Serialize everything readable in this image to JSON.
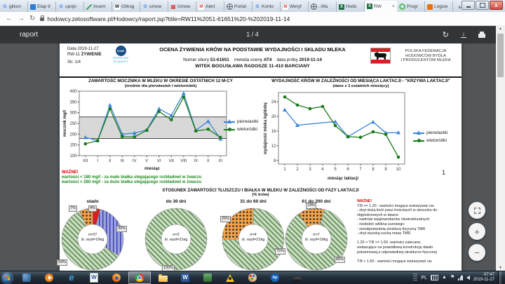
{
  "browser": {
    "tabs": [
      {
        "label": "glikon",
        "icon": "google"
      },
      {
        "label": "Etap 9",
        "icon": "blue-grid"
      },
      {
        "label": "upojn",
        "icon": "google"
      },
      {
        "label": "Insem",
        "icon": "green-pen"
      },
      {
        "label": "Glikog",
        "icon": "wikipedia"
      },
      {
        "label": "umow",
        "icon": "google"
      },
      {
        "label": "Umow",
        "icon": "red-grid"
      },
      {
        "label": "Alert",
        "icon": "gmail"
      },
      {
        "label": "Portal",
        "icon": "globe"
      },
      {
        "label": "Konto",
        "icon": "google"
      },
      {
        "label": "Weryf",
        "icon": "gmail"
      },
      {
        "label": "..Wa",
        "icon": "globe"
      },
      {
        "label": "Hodo",
        "icon": "excel"
      },
      {
        "label": "RW",
        "icon": "excel",
        "active": true
      },
      {
        "label": "Progr",
        "icon": "green-ring"
      },
      {
        "label": "Logow",
        "icon": "orange-app"
      }
    ],
    "new_tab_label": "+",
    "close_tab_glyph": "×",
    "url": "hodowcy.zetosoftware.pl/Hodowcy/raport.jsp?title=RW11%2051-61651%20-%202019-11-14"
  },
  "pdf": {
    "title": "raport",
    "page_indicator": "1 / 4"
  },
  "report": {
    "meta": {
      "line1": "Data 2019-11-27",
      "code": "RW-11",
      "code_name": "ŻYWIENIE",
      "page": "Str. 1/4"
    },
    "icar": {
      "name": "ICAR",
      "cert_line1": "CERTIFICATE",
      "cert_line2": "OF QUALITY"
    },
    "title": "OCENA ŻYWIENIA KRÓW NA PODSTAWIE WYDAJNOŚCI I SKŁADU MLEKA",
    "info": {
      "numer_label": "Numer obory",
      "numer": "51-61651",
      "metoda_label": "metoda oceny",
      "metoda": "AT4",
      "proba_label": "data próby",
      "proba": "2019-11-14"
    },
    "farm": "WITEK  BOGUSŁAWA RADOSZE 11-410 BARCIANY",
    "federation": [
      "POLSKA FEDERACJA",
      "HODOWCÓW BYDŁA",
      "I PRODUCENTÓW MLEKA"
    ],
    "urea_warning": {
      "heading": "WAŻNE!",
      "lines": [
        "wartości < 180 mg/l - za mało białka ulegającego rozkładowi w żwaczu",
        "wartości > 280 mg/l - za dużo białka ulegającego rozkładowi w żwaczu"
      ]
    },
    "page_number": "1",
    "tb_warning": {
      "heading": "WAŻNE!",
      "lines": [
        "T:B <= 1.20 - wartości mogące wskazywać na:",
        "- zbyt dużą ilość pasz treściwych w stosunku do",
        "objętościowych w dawce",
        "- nadmiar węglowodanów niestrukturalnych",
        "- niedobór włókna surowego",
        "- nieodpowiednią strukturę fizyczną TMR",
        "- zbyt wysoką suchą masę TMR",
        "",
        "1.20 > T:B <= 1.50 -wartości zalecane,",
        "wskazujące na prawidłową konstrukcję dawki",
        "pokarmowej,o odpowiedniej strukturze fizycznej",
        "",
        "T:B > 1.50 - wartości mogące wskazywać na:"
      ]
    }
  },
  "chart_data": [
    {
      "id": "urea",
      "type": "line",
      "title": "ZAWARTOŚĆ MOCZNIKA W MLEKU W OKRESIE OSTATNICH 12 M-CY",
      "subtitle": "(średnie dla pierwiastek i wieloródek)",
      "categories": [
        "XII",
        "I",
        "II",
        "III",
        "IV",
        "V",
        "VI",
        "VII",
        "VIII",
        "IX",
        "X",
        "XI"
      ],
      "series": [
        {
          "name": "pierwiastki",
          "color": "#3a87d9",
          "marker": "triangle",
          "values": [
            185,
            170,
            335,
            200,
            205,
            220,
            318,
            287,
            390,
            218,
            260,
            178
          ]
        },
        {
          "name": "wieloródki",
          "color": "#1a7a1a",
          "marker": "circle",
          "values": [
            155,
            170,
            318,
            188,
            187,
            218,
            305,
            267,
            372,
            215,
            223,
            185
          ]
        }
      ],
      "ylabel": "mocznik mg/l",
      "xlabel": "miesiąc",
      "ylim": [
        100,
        400
      ],
      "yticks": [
        100,
        150,
        200,
        250,
        300,
        350,
        400
      ],
      "band": [
        180,
        280
      ],
      "band_color": "#d8d8d8",
      "grid": false,
      "legend_position": "right"
    },
    {
      "id": "lactation",
      "type": "line",
      "title": "WYDAJNOŚĆ KRÓW W ZALEŻNOŚCI OD MIESIĄCA LAKTACJI - \"KRZYWA LAKTACJI\"",
      "subtitle": "(dane z 3 ostatnich miesięcy)",
      "categories": [
        "1",
        "2",
        "3",
        "4",
        "5",
        "6",
        "7",
        "8",
        "9",
        "10"
      ],
      "series": [
        {
          "name": "pierwiastki",
          "color": "#3a87d9",
          "marker": "triangle",
          "values": [
            21.8,
            17.6,
            null,
            null,
            18.6,
            14.5,
            null,
            18.5,
            15.5,
            15.6
          ]
        },
        {
          "name": "wieloródki",
          "color": "#1a7a1a",
          "marker": "circle",
          "values": [
            25.3,
            23.1,
            22.1,
            22.7,
            17.5,
            14.5,
            14.3,
            15.8,
            15.1,
            8.9
          ]
        }
      ],
      "ylabel": "wydajność mleka kg/dobę",
      "xlabel": "miesiąc laktacji",
      "ylim": [
        7,
        26.5
      ],
      "yticks": [
        8,
        12,
        16,
        20,
        24
      ],
      "grid": false,
      "legend_position": "right"
    },
    {
      "id": "fat_protein_ratio",
      "type": "pie",
      "section_title": "STOSUNEK ZAWARTOŚCI TŁUSZCZU I  BIAŁKA W MLEKU W ZALEŻNOŚCI OD FAZY LAKTACJI",
      "section_subtitle": "(% krów)",
      "patterns": {
        "green": {
          "bg": "#c9dcc0",
          "fg": "#4e7d46",
          "style": "diag"
        },
        "orange": {
          "bg": "#f2a44c",
          "fg": "#1a1a1a",
          "style": "dots"
        },
        "blue": {
          "bg": "#9aa3e0",
          "fg": "#3939a8",
          "style": "vert"
        },
        "red": {
          "bg": "#d42020",
          "fg": "#d42020",
          "style": "solid"
        }
      },
      "donuts": [
        {
          "title": "stado",
          "n": "n=27",
          "yield": "śr. wyd=16kg",
          "rotate": 0,
          "slices": [
            {
              "value": 4,
              "pattern": "red"
            },
            {
              "value": 30,
              "pattern": "blue"
            },
            {
              "value": 59,
              "pattern": "green"
            },
            {
              "value": 7,
              "pattern": "orange"
            }
          ],
          "labels": [
            {
              "text": "7%",
              "x": 22,
              "y": 9
            },
            {
              "text": "4%",
              "x": 50,
              "y": 9
            },
            {
              "text": "30%",
              "x": 90,
              "y": 38
            },
            {
              "text": "59%",
              "x": 5,
              "y": 86
            }
          ]
        },
        {
          "title": "do 30 dni",
          "n": "n=2",
          "yield": "śr. wyd=21kg",
          "rotate": 0,
          "slices": [
            {
              "value": 100,
              "pattern": "green"
            }
          ],
          "labels": [
            {
              "text": "100%",
              "x": 36,
              "y": 94
            }
          ]
        },
        {
          "title": "31 do 60 dni",
          "n": "n=4",
          "yield": "śr. wyd=21kg",
          "rotate": 0,
          "slices": [
            {
              "value": 75,
              "pattern": "green"
            },
            {
              "value": 25,
              "pattern": "orange"
            }
          ],
          "labels": [
            {
              "text": "25%",
              "x": 9,
              "y": 24
            },
            {
              "text": "75%",
              "x": 87,
              "y": 70
            }
          ]
        },
        {
          "title": "61 do 200 dni",
          "n": "n=7",
          "yield": "śr. wyd=19kg",
          "rotate": 15,
          "slices": [
            {
              "value": 86,
              "pattern": "green"
            },
            {
              "value": 14,
              "pattern": "orange"
            }
          ],
          "labels": [
            {
              "text": "14%",
              "x": 41,
              "y": 5
            },
            {
              "text": "86%",
              "x": 82,
              "y": 82
            }
          ]
        }
      ]
    }
  ],
  "taskbar": {
    "icons": [
      {
        "name": "zeto-app"
      },
      {
        "name": "media-player"
      },
      {
        "name": "internet-explorer"
      },
      {
        "name": "word-document"
      },
      {
        "name": "firefox"
      },
      {
        "name": "chrome",
        "active": true
      },
      {
        "name": "explorer-folder"
      },
      {
        "name": "word"
      },
      {
        "name": "green-app"
      },
      {
        "name": "roadworks"
      },
      {
        "name": "paint-palette"
      },
      {
        "name": "hp"
      },
      {
        "name": "scanner"
      }
    ],
    "tray": {
      "lang": "PL",
      "time": "07:47",
      "date": "2019-11-27"
    }
  },
  "colors": {
    "accent_blue": "#3a87d9",
    "accent_green": "#1a7a1a",
    "warning_red": "#e00000",
    "ok_green": "#1e8a1e",
    "toolbar": "#323639",
    "canvas": "#525659"
  }
}
